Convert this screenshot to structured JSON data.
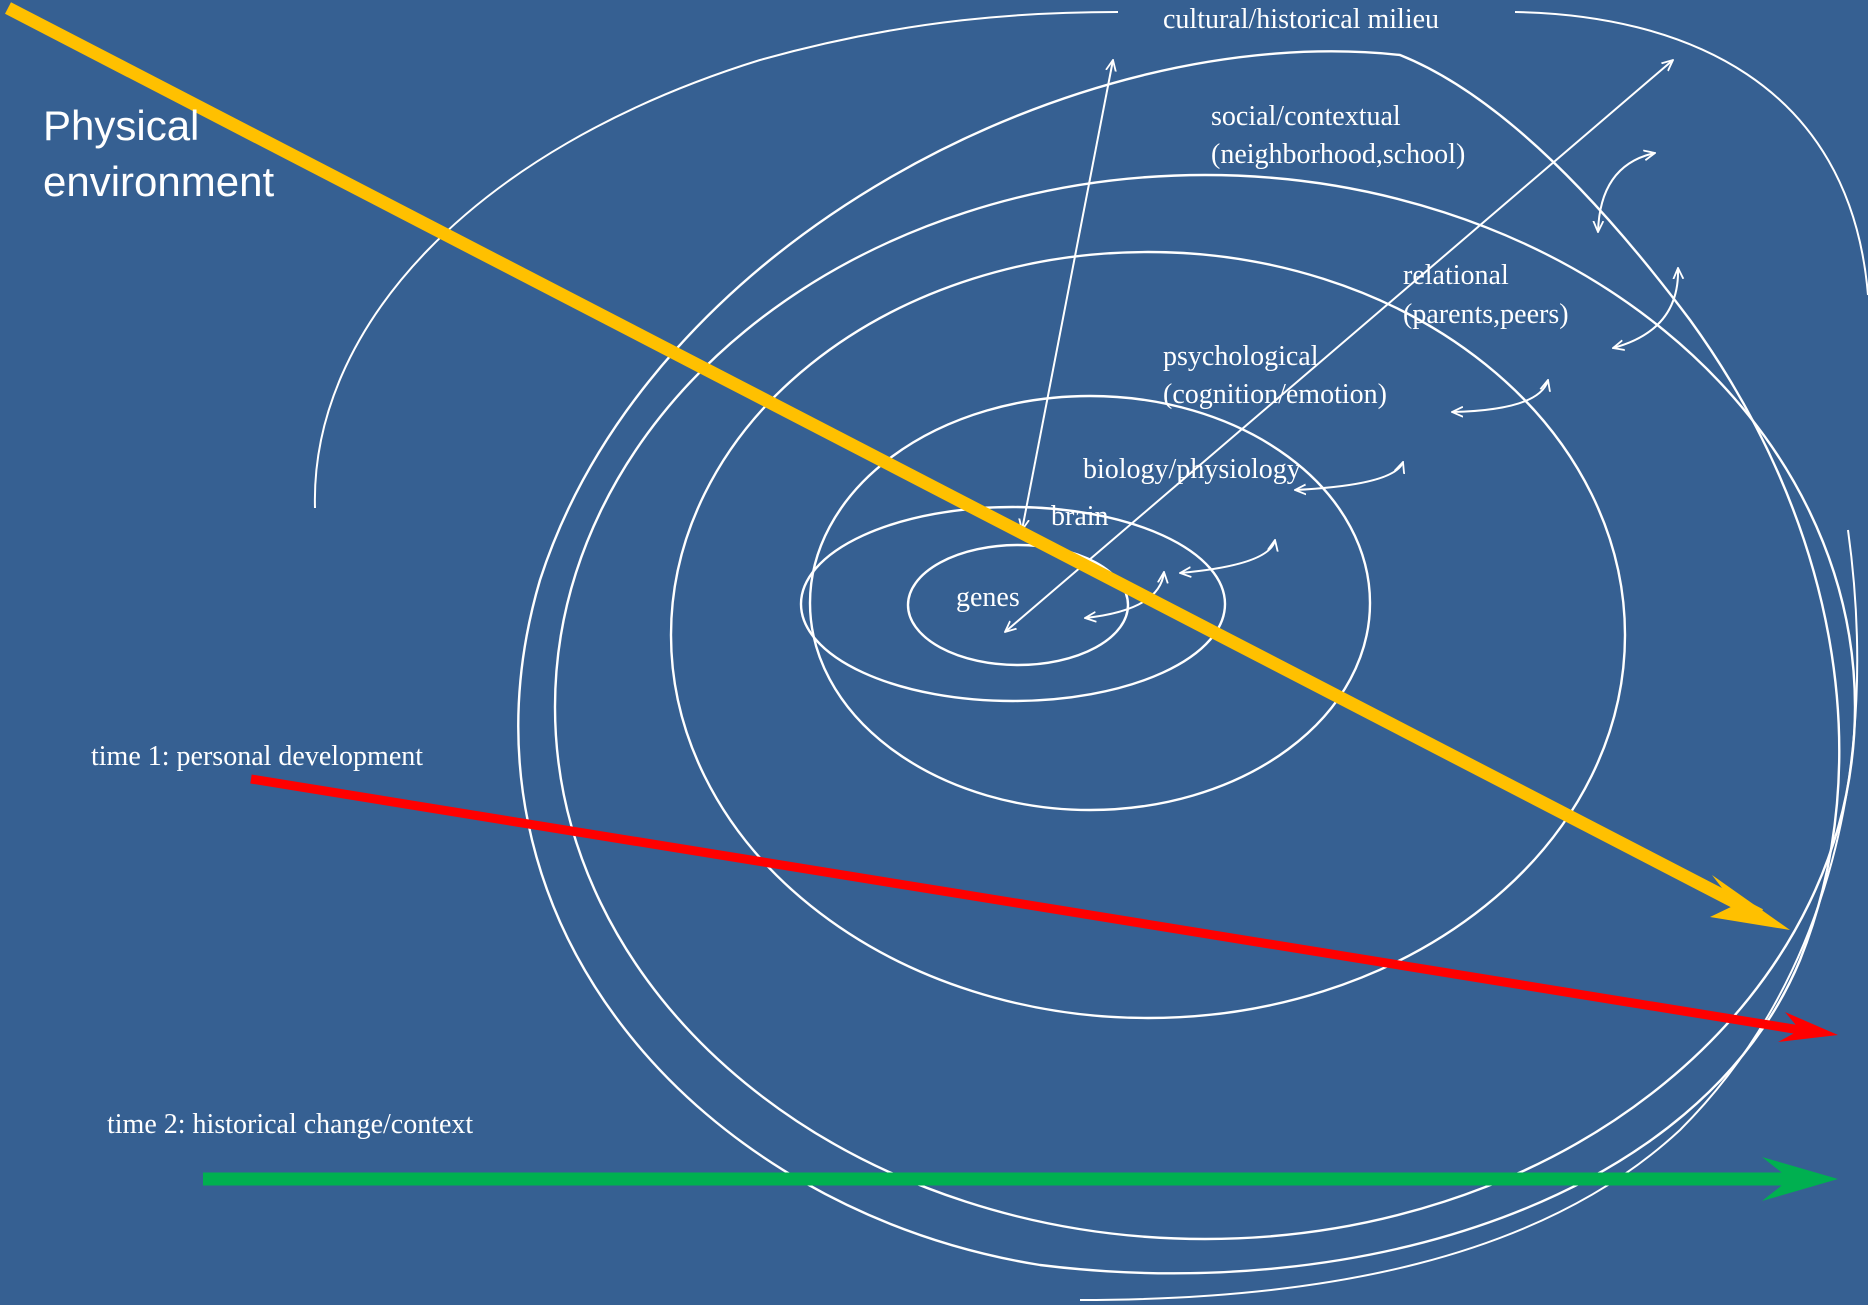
{
  "labels": {
    "physical_line1": "Physical",
    "physical_line2": "environment",
    "cultural": "cultural/historical milieu",
    "social_line1": "social/contextual",
    "social_line2": "(neighborhood,school)",
    "relational_line1": "relational",
    "relational_line2": "(parents,peers)",
    "psychological_line1": "psychological",
    "psychological_line2": "(cognition/emotion)",
    "biology": "biology/physiology",
    "brain": "brain",
    "genes": "genes",
    "time1": "time 1: personal development",
    "time2": "time 2: historical change/context"
  },
  "colors": {
    "background": "#366092",
    "lines": "#ffffff",
    "physical_arrow": "#ffc000",
    "time1_arrow": "#ff0000",
    "time2_arrow": "#00b050"
  }
}
